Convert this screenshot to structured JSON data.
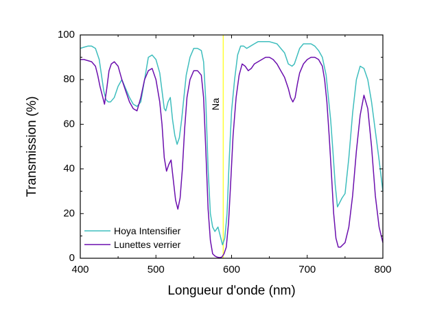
{
  "chart_data": {
    "type": "line",
    "title": "",
    "xlabel": "Longueur d'onde (nm)",
    "ylabel": "Transmission (%)",
    "xlim": [
      400,
      800
    ],
    "ylim": [
      0,
      100
    ],
    "xticks": [
      400,
      500,
      600,
      700,
      800
    ],
    "yticks": [
      0,
      20,
      40,
      60,
      80,
      100
    ],
    "xtick_labels": [
      "400",
      "500",
      "600",
      "700",
      "800"
    ],
    "ytick_labels": [
      "0",
      "20",
      "40",
      "60",
      "80",
      "100"
    ],
    "grid": false,
    "legend_position": "bottom-left",
    "annotations": [
      {
        "text": "Na",
        "x": 589,
        "label_y": 69,
        "line_color": "#ffff33"
      }
    ],
    "series": [
      {
        "name": "Hoya Intensifier",
        "color": "#3dbdbd",
        "x": [
          400,
          405,
          410,
          415,
          420,
          425,
          428,
          431,
          434,
          437,
          440,
          445,
          450,
          455,
          460,
          465,
          470,
          475,
          480,
          485,
          490,
          495,
          500,
          505,
          508,
          511,
          513,
          516,
          519,
          522,
          525,
          528,
          531,
          534,
          537,
          540,
          545,
          550,
          555,
          560,
          563,
          566,
          569,
          572,
          575,
          578,
          580,
          582,
          585,
          588,
          591,
          594,
          597,
          600,
          604,
          608,
          612,
          616,
          620,
          625,
          630,
          635,
          640,
          650,
          660,
          665,
          670,
          675,
          680,
          683,
          686,
          690,
          695,
          700,
          705,
          710,
          715,
          720,
          725,
          728,
          731,
          734,
          737,
          740,
          743,
          746,
          750,
          755,
          760,
          765,
          770,
          775,
          780,
          785,
          790,
          795,
          800
        ],
        "y": [
          94,
          94.5,
          95,
          95,
          94,
          89,
          82,
          75,
          71,
          70,
          70,
          72,
          77,
          80,
          76,
          72,
          69,
          68,
          70,
          80,
          90,
          91,
          89,
          83,
          75,
          67,
          66,
          70,
          72,
          62,
          55,
          51,
          54,
          62,
          72,
          82,
          90,
          94,
          94,
          93,
          88,
          70,
          40,
          20,
          14,
          12,
          13,
          14,
          10,
          6,
          9,
          20,
          45,
          66,
          80,
          91,
          95,
          95,
          94,
          95,
          96,
          97,
          97,
          97,
          96,
          94,
          92,
          87,
          86,
          87,
          90,
          94,
          96,
          96,
          96,
          95,
          93,
          90,
          82,
          72,
          62,
          48,
          33,
          23,
          25,
          27,
          29,
          45,
          65,
          80,
          86,
          85,
          80,
          70,
          57,
          44,
          30
        ],
        "show_in_legend": true
      },
      {
        "name": "Lunettes verrier",
        "color": "#6a0dad",
        "x": [
          400,
          405,
          410,
          415,
          420,
          423,
          426,
          429,
          432,
          435,
          438,
          441,
          445,
          450,
          455,
          460,
          465,
          470,
          475,
          480,
          485,
          490,
          495,
          500,
          505,
          508,
          511,
          514,
          517,
          520,
          523,
          526,
          529,
          532,
          535,
          538,
          541,
          545,
          550,
          555,
          560,
          563,
          566,
          569,
          572,
          575,
          578,
          581,
          584,
          587,
          590,
          593,
          596,
          599,
          602,
          606,
          610,
          614,
          618,
          622,
          626,
          630,
          635,
          640,
          645,
          650,
          655,
          660,
          665,
          670,
          675,
          678,
          681,
          684,
          687,
          690,
          695,
          700,
          705,
          710,
          715,
          720,
          723,
          726,
          729,
          732,
          735,
          738,
          741,
          744,
          747,
          750,
          755,
          760,
          765,
          770,
          775,
          780,
          785,
          790,
          795,
          800
        ],
        "y": [
          89,
          89,
          88.5,
          88,
          86,
          82,
          77,
          73,
          69,
          76,
          84,
          87,
          88,
          86,
          80,
          75,
          70,
          67,
          66,
          72,
          80,
          84,
          85,
          80,
          70,
          60,
          45,
          39,
          42,
          44,
          35,
          26,
          22,
          27,
          40,
          58,
          72,
          80,
          84,
          84,
          82,
          72,
          48,
          22,
          8,
          2,
          1,
          0.5,
          0.3,
          0.5,
          2,
          5,
          16,
          35,
          55,
          72,
          82,
          87,
          86,
          84,
          85,
          87,
          88,
          89,
          90,
          90,
          89,
          87,
          84,
          81,
          76,
          72,
          70,
          72,
          78,
          83,
          87,
          89,
          90,
          90,
          89,
          86,
          80,
          70,
          55,
          38,
          20,
          9,
          5,
          5,
          6,
          7,
          14,
          28,
          48,
          64,
          73,
          67,
          50,
          28,
          14,
          7
        ],
        "show_in_legend": true
      }
    ]
  }
}
